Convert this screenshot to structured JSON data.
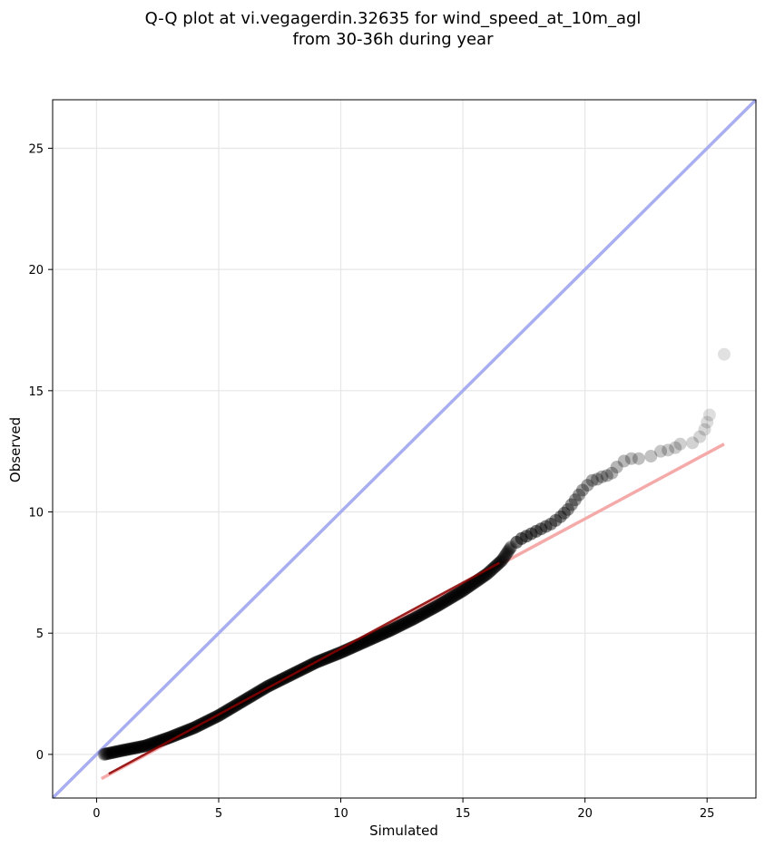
{
  "chart_data": {
    "type": "scatter",
    "title_line1": "Q-Q plot at vi.vegagerdin.32635 for wind_speed_at_10m_agl",
    "title_line2": "from 30-36h during year",
    "xlabel": "Simulated",
    "ylabel": "Observed",
    "xlim": [
      -1.8,
      27
    ],
    "ylim": [
      -1.8,
      27
    ],
    "xticks": [
      0,
      5,
      10,
      15,
      20,
      25
    ],
    "yticks": [
      0,
      5,
      10,
      15,
      20,
      25
    ],
    "grid": true,
    "colors": {
      "points": "#000000",
      "identity_line": "#a8aef0",
      "fit_line": "#f5aaaa",
      "fit_segment_dark": "#8b0000",
      "grid": "#e6e6e6"
    },
    "identity_line": {
      "x": [
        -1.8,
        27
      ],
      "y": [
        -1.8,
        27
      ]
    },
    "fit_line": {
      "x": [
        0.2,
        25.7
      ],
      "y": [
        -1.0,
        12.8
      ]
    },
    "fit_segment_dark": {
      "x": [
        0.5,
        16.5
      ],
      "y": [
        -0.8,
        7.9
      ]
    },
    "body_curve": {
      "x": [
        0.3,
        1,
        2,
        3,
        4,
        5,
        6,
        7,
        8,
        9,
        10,
        11,
        12,
        13,
        14,
        15,
        16,
        16.6,
        17
      ],
      "y": [
        0.0,
        0.15,
        0.35,
        0.7,
        1.1,
        1.6,
        2.2,
        2.8,
        3.3,
        3.8,
        4.2,
        4.65,
        5.1,
        5.6,
        6.15,
        6.75,
        7.45,
        8.0,
        8.6
      ]
    },
    "tail_points": {
      "x": [
        17.2,
        17.4,
        17.6,
        17.8,
        18.0,
        18.2,
        18.4,
        18.6,
        18.8,
        19.0,
        19.15,
        19.3,
        19.45,
        19.6,
        19.75,
        19.9,
        20.1,
        20.3,
        20.5,
        20.7,
        20.9,
        21.1,
        21.3,
        21.6,
        21.9,
        22.2,
        22.7,
        23.1,
        23.4,
        23.7,
        23.9,
        24.4,
        24.7,
        24.9,
        25.0,
        25.1,
        25.7
      ],
      "y": [
        8.75,
        8.9,
        9.0,
        9.1,
        9.2,
        9.3,
        9.4,
        9.5,
        9.65,
        9.8,
        9.95,
        10.1,
        10.3,
        10.5,
        10.7,
        10.9,
        11.1,
        11.3,
        11.35,
        11.45,
        11.5,
        11.6,
        11.85,
        12.1,
        12.2,
        12.2,
        12.3,
        12.5,
        12.55,
        12.65,
        12.8,
        12.85,
        13.1,
        13.4,
        13.7,
        14.0,
        16.5
      ]
    }
  }
}
